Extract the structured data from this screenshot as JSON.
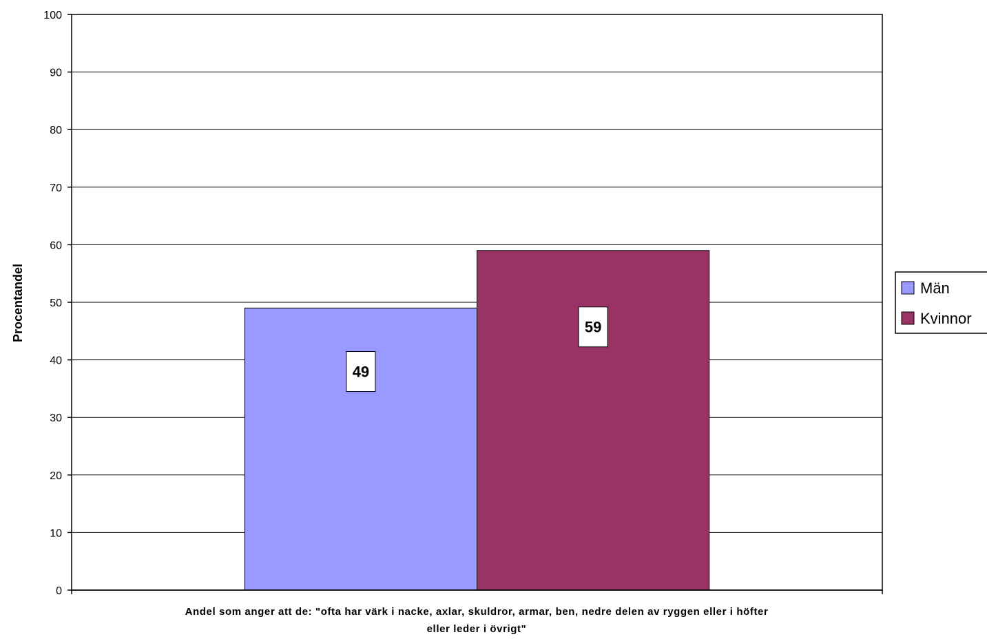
{
  "chart_data": {
    "type": "bar",
    "categories": [
      ""
    ],
    "series": [
      {
        "name": "Män",
        "values": [
          49
        ],
        "color": "#9999ff"
      },
      {
        "name": "Kvinnor",
        "values": [
          59
        ],
        "color": "#993366"
      }
    ],
    "title": "",
    "ylabel": "Procentandel",
    "xlabel": [
      "Andel som anger att de: \"ofta har värk i nacke, axlar, skuldror, armar, ben, nedre delen av ryggen eller i höfter",
      "eller leder i övrigt\""
    ],
    "ylim": [
      0,
      100
    ],
    "yticks": [
      "0",
      "10",
      "20",
      "30",
      "40",
      "50",
      "60",
      "70",
      "80",
      "90",
      "100"
    ],
    "data_labels": [
      "49",
      "59"
    ],
    "grid": true,
    "legend": "right"
  }
}
